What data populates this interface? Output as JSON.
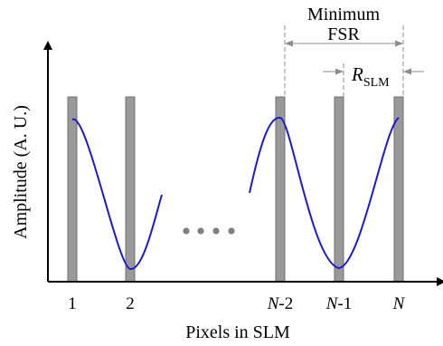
{
  "diagram": {
    "y_axis_title": "Amplitude (A. U.)",
    "x_axis_title": "Pixels in SLM",
    "pixel_labels": {
      "p1": "1",
      "p2": "2",
      "pNm2_var": "N",
      "pNm2_suffix": "-2",
      "pNm1_var": "N",
      "pNm1_suffix": "-1",
      "pN_var": "N"
    },
    "min_fsr_line1": "Minimum",
    "min_fsr_line2": "FSR",
    "r_slm_symbol": "R",
    "r_slm_subscript": "SLM",
    "colors": {
      "pixel_bar": "#999999",
      "pixel_bar_edge": "#6e6e6e",
      "sine_wave": "#1a1acc",
      "axis": "#000000",
      "dashed_guide": "#8c8c8c",
      "ellipsis_dots": "#7f7f7f"
    }
  }
}
